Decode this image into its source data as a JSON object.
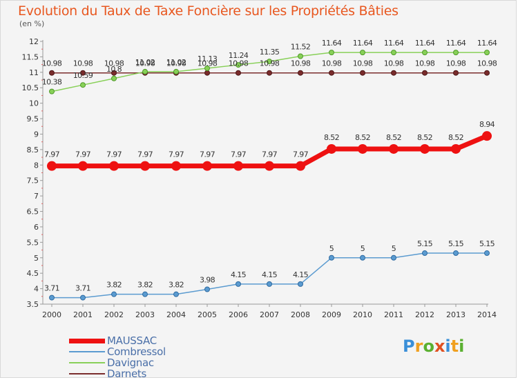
{
  "header": {
    "title": "Evolution du Taux de Taxe Foncière sur les Propriétés Bâties",
    "unit": "(en %)"
  },
  "brand": {
    "logo_text": "Proxiti",
    "logo_colors": [
      "#3a8fd8",
      "#f0a020",
      "#5ab030",
      "#e05020",
      "#3a8fd8",
      "#f0a020",
      "#5ab030"
    ]
  },
  "chart_data": {
    "type": "line",
    "title": "Evolution du Taux de Taxe Foncière sur les Propriétés Bâties",
    "ylabel": "(en %)",
    "xlabel": "",
    "ylim": [
      3.5,
      12
    ],
    "yticks": [
      "3.5",
      "4",
      "4.5",
      "5",
      "5.5",
      "6",
      "6.5",
      "7",
      "7.5",
      "8",
      "8.5",
      "9",
      "9.5",
      "10",
      "10.5",
      "11",
      "11.5",
      "12"
    ],
    "grid": false,
    "legend": "bottom-left",
    "categories": [
      "2000",
      "2001",
      "2002",
      "2003",
      "2004",
      "2005",
      "2006",
      "2007",
      "2008",
      "2009",
      "2010",
      "2011",
      "2012",
      "2013",
      "2014"
    ],
    "series": [
      {
        "name": "MAUSSAC",
        "color": "#ee1111",
        "labels": [
          "7.97",
          "7.97",
          "7.97",
          "7.97",
          "7.97",
          "7.97",
          "7.97",
          "7.97",
          "7.97",
          "8.52",
          "8.52",
          "8.52",
          "8.52",
          "8.52",
          "8.94"
        ],
        "values": [
          7.97,
          7.97,
          7.97,
          7.97,
          7.97,
          7.97,
          7.97,
          7.97,
          7.97,
          8.52,
          8.52,
          8.52,
          8.52,
          8.52,
          8.94
        ]
      },
      {
        "name": "Combressol",
        "color": "#5b9bd0",
        "labels": [
          "3.71",
          "3.71",
          "3.82",
          "3.82",
          "3.82",
          "3.98",
          "4.15",
          "4.15",
          "4.15",
          "5",
          "5",
          "5",
          "5.15",
          "5.15",
          "5.15"
        ],
        "values": [
          3.71,
          3.71,
          3.82,
          3.82,
          3.82,
          3.98,
          4.15,
          4.15,
          4.15,
          5,
          5,
          5,
          5.15,
          5.15,
          5.15
        ]
      },
      {
        "name": "Davignac",
        "color": "#88d058",
        "labels": [
          "10.38",
          "10.59",
          "10.8",
          "11.02",
          "11.02",
          "11.13",
          "11.24",
          "11.35",
          "11.52",
          "11.64",
          "11.64",
          "11.64",
          "11.64",
          "11.64",
          "11.64"
        ],
        "values": [
          10.38,
          10.59,
          10.8,
          11.02,
          11.02,
          11.13,
          11.24,
          11.35,
          11.52,
          11.64,
          11.64,
          11.64,
          11.64,
          11.64,
          11.64
        ]
      },
      {
        "name": "Darnets",
        "color": "#7a2c2c",
        "labels": [
          "10.98",
          "10.98",
          "10.98",
          "10.98",
          "10.98",
          "10.98",
          "10.98",
          "10.98",
          "10.98",
          "10.98",
          "10.98",
          "10.98",
          "10.98",
          "10.98",
          "10.98"
        ],
        "values": [
          10.98,
          10.98,
          10.98,
          10.98,
          10.98,
          10.98,
          10.98,
          10.98,
          10.98,
          10.98,
          10.98,
          10.98,
          10.98,
          10.98,
          10.98
        ]
      }
    ]
  }
}
